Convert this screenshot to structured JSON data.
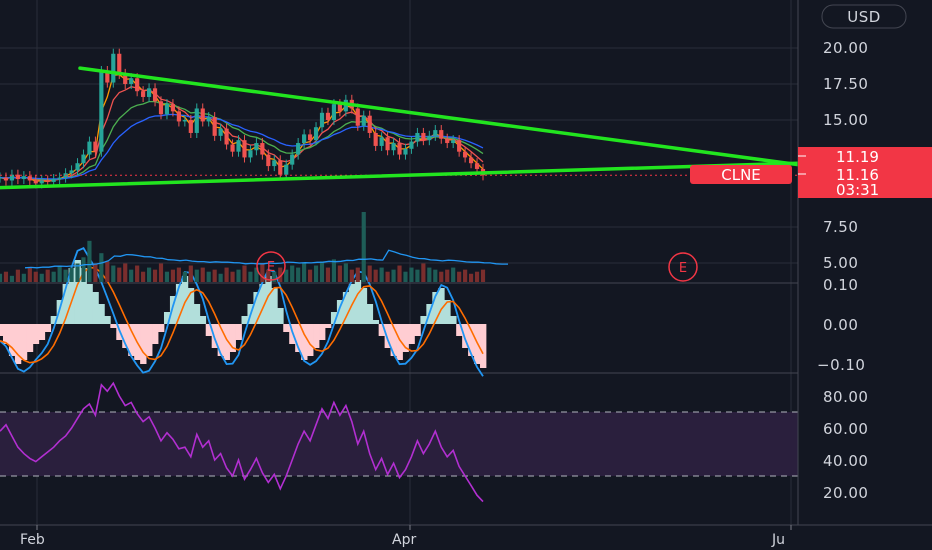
{
  "currency_label": "USD",
  "colors": {
    "background": "#131722",
    "grid": "#2a2e39",
    "trendline": "#22e51f",
    "up": "#26a69a",
    "down": "#ef5350",
    "price_tag": "#f23645",
    "rsi": "#b22fd1",
    "rsi_band": "#2a1f3d",
    "macd_line": "#2196f3",
    "signal_line": "#ff6d00",
    "hist_pos": "#b2dfdb",
    "hist_neg": "#ffcdd2"
  },
  "chart_data": [
    {
      "type": "candlestick",
      "symbol": "CLNE",
      "x_ticks": [
        "Feb",
        "Apr",
        "Ju"
      ],
      "y_ticks": [
        "20.00",
        "17.50",
        "15.00",
        "7.50",
        "5.00"
      ],
      "price_labels": {
        "upper": "11.19",
        "last": "11.16",
        "countdown": "03:31"
      },
      "symbol_tag": "CLNE",
      "earnings_markers": [
        "E",
        "E"
      ],
      "trendlines": [
        {
          "name": "upper",
          "from": {
            "date": "Jan 30",
            "price": 18.6
          },
          "to": {
            "date": "Jun 01",
            "price": 11.9
          }
        },
        {
          "name": "lower",
          "from": {
            "date": "Jan 01",
            "price": 10.3
          },
          "to": {
            "date": "Jun 01",
            "price": 12.0
          }
        }
      ],
      "series": [
        {
          "kind": "candles",
          "close": [
            11.0,
            10.8,
            11.2,
            10.9,
            11.1,
            10.8,
            10.6,
            10.8,
            10.7,
            10.9,
            11.0,
            11.3,
            11.5,
            12.0,
            12.6,
            13.5,
            12.8,
            18.4,
            17.6,
            19.6,
            18.2,
            17.5,
            17.9,
            17.0,
            16.6,
            17.2,
            16.3,
            15.4,
            16.1,
            15.6,
            14.9,
            15.0,
            14.1,
            15.8,
            14.9,
            15.2,
            13.9,
            14.4,
            13.3,
            12.8,
            13.6,
            12.4,
            12.9,
            13.4,
            12.6,
            11.8,
            12.2,
            11.2,
            11.9,
            12.6,
            13.4,
            14.0,
            13.6,
            14.5,
            15.5,
            15.0,
            16.1,
            15.6,
            16.4,
            15.8,
            14.6,
            15.3,
            14.1,
            13.2,
            13.8,
            12.9,
            13.4,
            12.6,
            13.0,
            13.5,
            14.1,
            13.6,
            13.9,
            14.3,
            13.7,
            13.4,
            13.6,
            12.8,
            12.4,
            12.0,
            11.6,
            11.16
          ]
        },
        {
          "kind": "moving_average",
          "color": "#ff9800"
        },
        {
          "kind": "moving_average",
          "color": "#ef5350"
        },
        {
          "kind": "moving_average",
          "color": "#4caf50"
        },
        {
          "kind": "moving_average",
          "color": "#2962ff"
        }
      ]
    },
    {
      "type": "bar",
      "name": "volume",
      "values": [
        4,
        5,
        3,
        6,
        4,
        7,
        5,
        4,
        6,
        5,
        8,
        6,
        7,
        9,
        12,
        20,
        9,
        14,
        10,
        8,
        7,
        9,
        6,
        8,
        5,
        7,
        6,
        9,
        5,
        6,
        7,
        5,
        8,
        6,
        7,
        5,
        6,
        4,
        7,
        5,
        6,
        8,
        5,
        7,
        9,
        6,
        5,
        7,
        6,
        8,
        7,
        9,
        6,
        8,
        10,
        7,
        11,
        8,
        9,
        6,
        7,
        34,
        8,
        6,
        7,
        5,
        6,
        8,
        5,
        7,
        6,
        9,
        7,
        6,
        5,
        6,
        7,
        5,
        6,
        4,
        5,
        6
      ]
    },
    {
      "type": "histogram",
      "name": "MACD",
      "y_ticks": [
        "0.10",
        "0.00",
        "−0.10"
      ],
      "values": [
        -0.03,
        -0.05,
        -0.08,
        -0.1,
        -0.09,
        -0.07,
        -0.05,
        -0.04,
        -0.02,
        0.02,
        0.06,
        0.1,
        0.14,
        0.16,
        0.14,
        0.1,
        0.08,
        0.05,
        0.02,
        -0.01,
        -0.04,
        -0.06,
        -0.08,
        -0.09,
        -0.1,
        -0.08,
        -0.05,
        -0.02,
        0.03,
        0.07,
        0.1,
        0.12,
        0.09,
        0.05,
        0.02,
        -0.03,
        -0.06,
        -0.08,
        -0.09,
        -0.07,
        -0.04,
        0.02,
        0.05,
        0.08,
        0.1,
        0.12,
        0.09,
        0.04,
        -0.02,
        -0.05,
        -0.07,
        -0.09,
        -0.08,
        -0.06,
        -0.04,
        -0.01,
        0.03,
        0.06,
        0.08,
        0.1,
        0.11,
        0.09,
        0.05,
        0.01,
        -0.03,
        -0.06,
        -0.08,
        -0.09,
        -0.07,
        -0.05,
        -0.03,
        0.02,
        0.05,
        0.08,
        0.09,
        0.06,
        0.02,
        -0.03,
        -0.06,
        -0.08,
        -0.1,
        -0.11
      ]
    },
    {
      "type": "line",
      "name": "RSI",
      "y_ticks": [
        "80.00",
        "60.00",
        "40.00",
        "20.00"
      ],
      "band": [
        30,
        70
      ],
      "values": [
        58,
        62,
        55,
        48,
        44,
        41,
        39,
        42,
        45,
        48,
        52,
        55,
        60,
        66,
        72,
        75,
        68,
        87,
        83,
        88,
        80,
        74,
        76,
        69,
        64,
        67,
        60,
        52,
        57,
        53,
        47,
        48,
        42,
        56,
        48,
        52,
        40,
        44,
        35,
        30,
        40,
        28,
        34,
        41,
        32,
        26,
        31,
        22,
        30,
        40,
        50,
        58,
        52,
        62,
        72,
        66,
        76,
        68,
        74,
        64,
        50,
        58,
        44,
        34,
        41,
        31,
        38,
        29,
        34,
        42,
        52,
        44,
        50,
        58,
        48,
        42,
        46,
        36,
        30,
        24,
        18,
        14
      ]
    }
  ]
}
